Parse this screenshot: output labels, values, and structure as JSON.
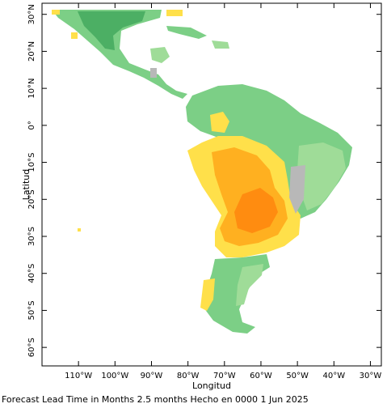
{
  "map": {
    "x_axis_title": "Longitud",
    "y_axis_title": "Latitud",
    "x_ticks": [
      {
        "lon": -110,
        "label": "110°W"
      },
      {
        "lon": -100,
        "label": "100°W"
      },
      {
        "lon": -90,
        "label": "90°W"
      },
      {
        "lon": -80,
        "label": "80°W"
      },
      {
        "lon": -70,
        "label": "70°W"
      },
      {
        "lon": -60,
        "label": "60°W"
      },
      {
        "lon": -50,
        "label": "50°W"
      },
      {
        "lon": -40,
        "label": "40°W"
      },
      {
        "lon": -30,
        "label": "30°W"
      }
    ],
    "y_ticks": [
      {
        "lat": 30,
        "label": "30°N"
      },
      {
        "lat": 20,
        "label": "20°N"
      },
      {
        "lat": 10,
        "label": "10°N"
      },
      {
        "lat": 0,
        "label": "0°"
      },
      {
        "lat": -10,
        "label": "10°S"
      },
      {
        "lat": -20,
        "label": "20°S"
      },
      {
        "lat": -30,
        "label": "30°S"
      },
      {
        "lat": -40,
        "label": "40°S"
      },
      {
        "lat": -50,
        "label": "50°S"
      },
      {
        "lat": -60,
        "label": "60°S"
      }
    ],
    "lon_range": [
      -120,
      -27
    ],
    "lat_range": [
      -65,
      33
    ],
    "colors": {
      "green_dark": "#4caf64",
      "green_mid": "#7ccf86",
      "green_light": "#9fdc98",
      "yellow": "#ffe04a",
      "orange": "#ffb020",
      "orange_dark": "#ff8c10",
      "gray": "#b8b8b8"
    }
  },
  "caption": "Forecast Lead Time in Months 2.5 months Hecho en 0000 1 Jun 2025"
}
